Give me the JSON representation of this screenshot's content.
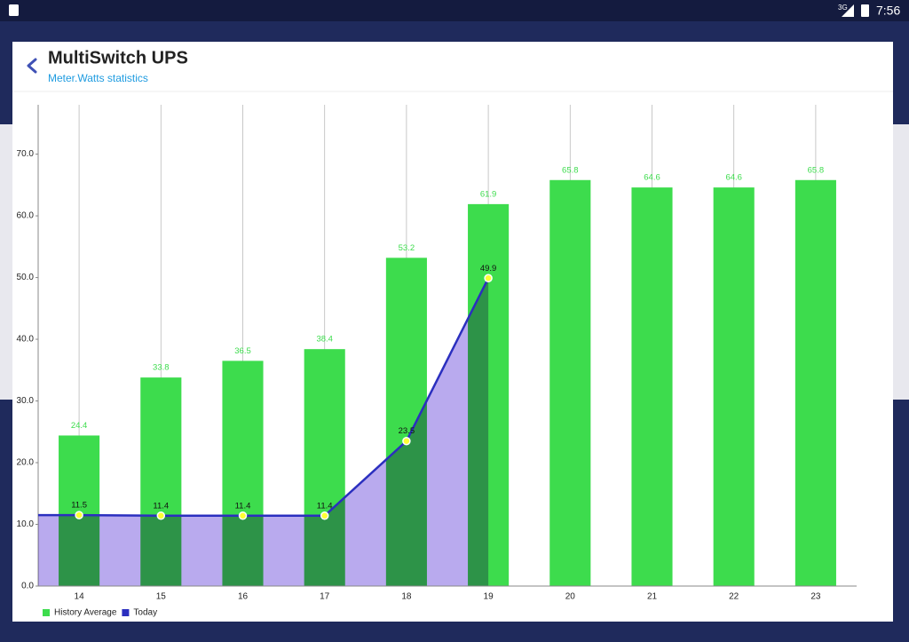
{
  "status_bar": {
    "network": "3G",
    "time": "7:56"
  },
  "dialog": {
    "title": "MultiSwitch UPS",
    "subtitle": "Meter.Watts statistics"
  },
  "chart_data": {
    "type": "bar",
    "categories": [
      "14",
      "15",
      "16",
      "17",
      "18",
      "19",
      "20",
      "21",
      "22",
      "23"
    ],
    "series": [
      {
        "name": "History Average",
        "type": "bar",
        "color": "#3ddc4d",
        "label_color": "#3ddc4d",
        "values": [
          24.4,
          33.8,
          36.5,
          38.4,
          53.2,
          61.9,
          65.8,
          64.6,
          64.6,
          65.8
        ]
      },
      {
        "name": "Today",
        "type": "line",
        "color": "#2b2fbf",
        "fill": "#b9aaee",
        "marker_color": "#ffff33",
        "label_color": "#111111",
        "values": [
          11.5,
          11.4,
          11.4,
          11.4,
          23.5,
          49.9,
          null,
          null,
          null,
          null
        ]
      }
    ],
    "ylim": [
      0,
      78
    ],
    "yticks": [
      {
        "value": 0,
        "label": "0.0"
      },
      {
        "value": 10,
        "label": "10.0"
      },
      {
        "value": 20,
        "label": "20.0"
      },
      {
        "value": 30,
        "label": "30.0"
      },
      {
        "value": 40,
        "label": "40.0"
      },
      {
        "value": 50,
        "label": "50.0"
      },
      {
        "value": 60,
        "label": "60.0"
      },
      {
        "value": 70,
        "label": "70.0"
      }
    ],
    "grid": "x",
    "legend": "bottom-left"
  }
}
